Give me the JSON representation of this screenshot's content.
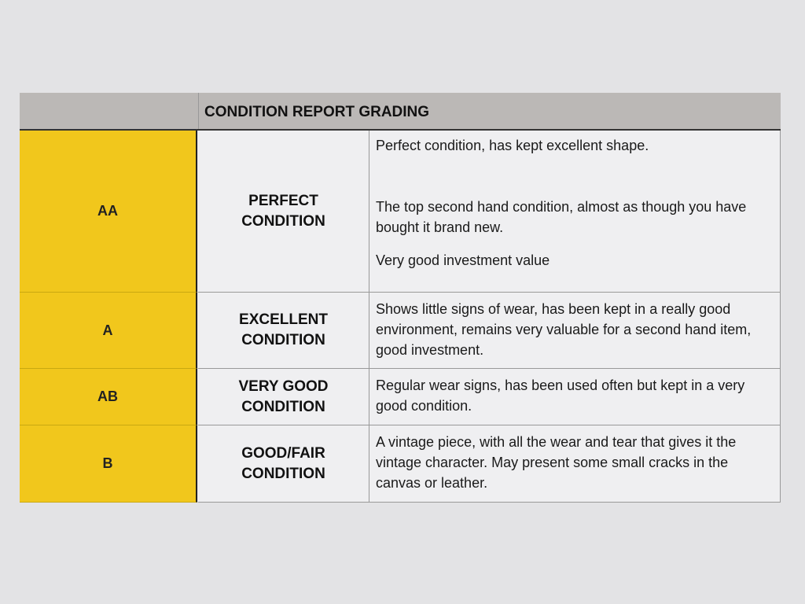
{
  "table": {
    "title": "CONDITION REPORT GRADING",
    "rows": [
      {
        "grade": "AA",
        "condition": "PERFECT CONDITION",
        "description": [
          "Perfect condition, has kept excellent shape.",
          "The top second hand condition, almost as though you have bought it brand new.",
          "Very good investment value"
        ]
      },
      {
        "grade": "A",
        "condition": "EXCELLENT CONDITION",
        "description": [
          "Shows little signs of wear, has been kept in a really good environment, remains very valuable for a second hand item, good investment."
        ]
      },
      {
        "grade": "AB",
        "condition": "VERY GOOD CONDITION",
        "description": [
          "Regular wear signs, has been used often but kept in a very good condition."
        ]
      },
      {
        "grade": "B",
        "condition": "GOOD/FAIR CONDITION",
        "description": [
          "A vintage piece, with all the wear and tear that gives it the vintage character. May present some small cracks in the canvas or leather."
        ]
      }
    ]
  },
  "colors": {
    "grade_fill": "#f1c71c",
    "header_fill": "#bbb8b6"
  }
}
